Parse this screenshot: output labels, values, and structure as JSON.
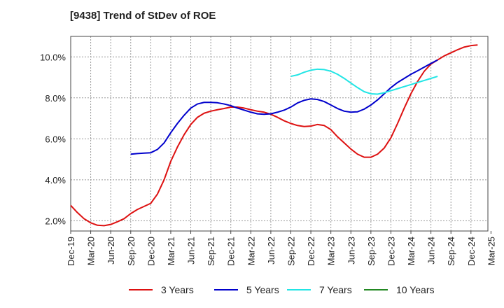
{
  "chart_data": {
    "type": "line",
    "title": "[9438]  Trend of StDev of ROE",
    "xlabel": "",
    "ylabel": "",
    "grid": true,
    "legend_position": "bottom",
    "x_ticks": [
      "Dec-19",
      "Mar-20",
      "Jun-20",
      "Sep-20",
      "Dec-20",
      "Mar-21",
      "Jun-21",
      "Sep-21",
      "Dec-21",
      "Mar-22",
      "Jun-22",
      "Sep-22",
      "Dec-22",
      "Mar-23",
      "Jun-23",
      "Sep-23",
      "Dec-23",
      "Mar-24",
      "Jun-24",
      "Sep-24",
      "Dec-24",
      "Mar-25"
    ],
    "y_ticks": [
      2.0,
      4.0,
      6.0,
      8.0,
      10.0
    ],
    "y_tick_labels": [
      "2.0%",
      "4.0%",
      "6.0%",
      "8.0%",
      "10.0%"
    ],
    "ylim": [
      1.5,
      11.0
    ],
    "series": [
      {
        "name": "3 Years",
        "color": "#dd1111",
        "start_index": 0,
        "values": [
          2.75,
          2.4,
          2.1,
          1.9,
          1.78,
          1.76,
          1.82,
          1.95,
          2.1,
          2.35,
          2.55,
          2.7,
          2.85,
          3.3,
          4.0,
          4.9,
          5.6,
          6.2,
          6.7,
          7.05,
          7.25,
          7.35,
          7.42,
          7.48,
          7.55,
          7.55,
          7.5,
          7.42,
          7.35,
          7.3,
          7.2,
          7.05,
          6.88,
          6.75,
          6.65,
          6.6,
          6.62,
          6.7,
          6.65,
          6.45,
          6.1,
          5.8,
          5.5,
          5.25,
          5.1,
          5.1,
          5.25,
          5.55,
          6.05,
          6.75,
          7.5,
          8.2,
          8.8,
          9.3,
          9.65,
          9.85,
          10.05,
          10.2,
          10.35,
          10.48,
          10.55,
          10.58
        ]
      },
      {
        "name": "5 Years",
        "color": "#0000cc",
        "start_index": 9,
        "values": [
          5.25,
          5.28,
          5.3,
          5.32,
          5.48,
          5.8,
          6.3,
          6.75,
          7.15,
          7.5,
          7.7,
          7.78,
          7.78,
          7.76,
          7.7,
          7.62,
          7.5,
          7.4,
          7.3,
          7.22,
          7.2,
          7.22,
          7.3,
          7.4,
          7.55,
          7.75,
          7.88,
          7.95,
          7.92,
          7.82,
          7.65,
          7.48,
          7.35,
          7.3,
          7.32,
          7.45,
          7.65,
          7.9,
          8.2,
          8.5,
          8.75,
          8.95,
          9.15,
          9.32,
          9.5,
          9.68,
          9.85
        ]
      },
      {
        "name": "7 Years",
        "color": "#22e5e5",
        "start_index": 33,
        "values": [
          9.05,
          9.12,
          9.25,
          9.35,
          9.4,
          9.38,
          9.3,
          9.15,
          8.95,
          8.72,
          8.5,
          8.3,
          8.2,
          8.18,
          8.25,
          8.35,
          8.45,
          8.55,
          8.65,
          8.75,
          8.85,
          8.95,
          9.05
        ]
      },
      {
        "name": "10 Years",
        "color": "#228822",
        "start_index": 0,
        "values": []
      }
    ]
  }
}
